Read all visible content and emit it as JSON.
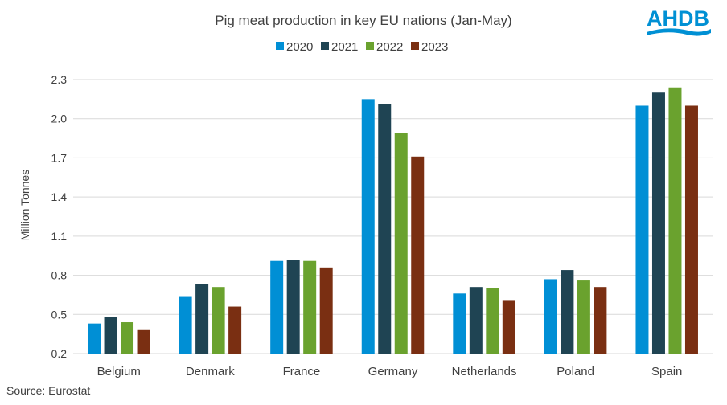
{
  "chart_data": {
    "type": "bar",
    "title": "Pig meat production in key EU nations (Jan-May)",
    "ylabel": "Million Tonnes",
    "xlabel": "",
    "ylim": [
      0.2,
      2.3
    ],
    "yticks": [
      "0.2",
      "0.5",
      "0.8",
      "1.1",
      "1.4",
      "1.7",
      "2.0",
      "2.3"
    ],
    "grid": true,
    "legend_position": "top",
    "categories": [
      "Belgium",
      "Denmark",
      "France",
      "Germany",
      "Netherlands",
      "Poland",
      "Spain"
    ],
    "series": [
      {
        "name": "2020",
        "color": "#008fd5",
        "values": [
          0.43,
          0.64,
          0.91,
          2.15,
          0.66,
          0.77,
          2.1
        ]
      },
      {
        "name": "2021",
        "color": "#1f4453",
        "values": [
          0.48,
          0.73,
          0.92,
          2.11,
          0.71,
          0.84,
          2.2
        ]
      },
      {
        "name": "2022",
        "color": "#6aa22e",
        "values": [
          0.44,
          0.71,
          0.91,
          1.89,
          0.7,
          0.76,
          2.24
        ]
      },
      {
        "name": "2023",
        "color": "#7a2f12",
        "values": [
          0.38,
          0.56,
          0.86,
          1.71,
          0.61,
          0.71,
          2.1
        ]
      }
    ],
    "source": "Source: Eurostat"
  },
  "logo": {
    "text": "AHDB",
    "color": "#0090d4"
  }
}
